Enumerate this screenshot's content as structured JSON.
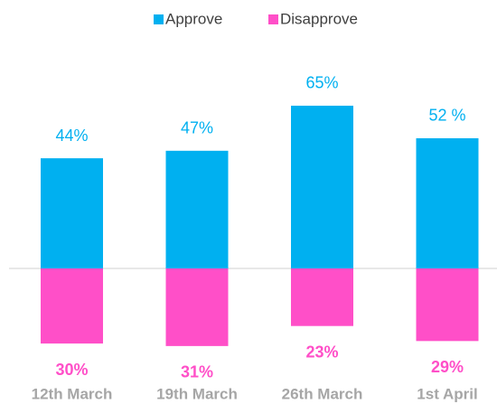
{
  "chart_data": {
    "type": "diverging_bar",
    "categories": [
      "12th March",
      "19th March",
      "26th March",
      "1st April"
    ],
    "series": [
      {
        "name": "Approve",
        "color": "#00b0f0",
        "values": [
          44,
          47,
          65,
          52
        ],
        "value_labels": [
          "44%",
          "47%",
          "65%",
          "52 %"
        ]
      },
      {
        "name": "Disapprove",
        "color": "#ff4fc8",
        "values": [
          30,
          31,
          23,
          29
        ],
        "value_labels": [
          "30%",
          "31%",
          "23%",
          "29%"
        ]
      }
    ],
    "legend": "top"
  }
}
